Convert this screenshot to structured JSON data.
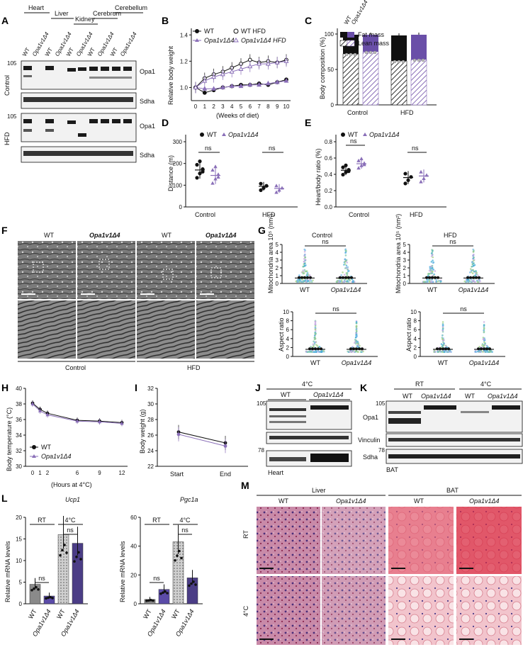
{
  "colors": {
    "wt": "#111111",
    "ko": "#8a6fb8",
    "ko_dark": "#4b3d86",
    "grey": "#8a8a8a"
  },
  "panels": {
    "A": {
      "label": "A",
      "tissues": [
        "Heart",
        "Liver",
        "Kidney",
        "Cerebrum",
        "Cerebellum"
      ],
      "genotypes": [
        "WT",
        "Opa1v1Δ4"
      ],
      "conditions": [
        "Control",
        "HFD"
      ],
      "mw": "105",
      "bands": [
        "Opa1",
        "Sdha"
      ]
    },
    "B": {
      "label": "B",
      "ylabel": "Relative body weight",
      "xlabel": "(Weeks of diet)",
      "legend": [
        "WT",
        "Opa1v1Δ4",
        "WT HFD",
        "Opa1v1Δ4 HFD"
      ],
      "yticks": [
        "1.0",
        "1.2",
        "1.4"
      ],
      "xticks": [
        "0",
        "1",
        "2",
        "3",
        "4",
        "5",
        "6",
        "7",
        "8",
        "9",
        "10"
      ]
    },
    "C": {
      "label": "C",
      "ylabel": "Body composition (%)",
      "legend_top": [
        "WT",
        "Opa1v1Δ4"
      ],
      "legend": [
        "Fat mass",
        "Lean mass"
      ],
      "yticks": [
        "0",
        "50",
        "100"
      ],
      "groups": [
        "Control",
        "HFD"
      ]
    },
    "D": {
      "label": "D",
      "ylabel": "Distance (m)",
      "legend": [
        "WT",
        "Opa1v1Δ4"
      ],
      "yticks": [
        "0",
        "100",
        "200",
        "300"
      ],
      "groups": [
        "Control",
        "HFD"
      ],
      "ns": "ns"
    },
    "E": {
      "label": "E",
      "ylabel": "Heart/body ratio (%)",
      "legend": [
        "WT",
        "Opa1v1Δ4"
      ],
      "yticks": [
        "0.0",
        "0.2",
        "0.4",
        "0.6",
        "0.8"
      ],
      "groups": [
        "Control",
        "HFD"
      ],
      "ns": "ns"
    },
    "F": {
      "label": "F",
      "cols": [
        "WT",
        "Opa1v1Δ4",
        "WT",
        "Opa1v1Δ4"
      ],
      "groups": [
        "Control",
        "HFD"
      ]
    },
    "G": {
      "label": "G",
      "titles": [
        "Control",
        "HFD"
      ],
      "ylabel_area": "Mitochondria area 10⁵ (nm²)",
      "ylabel_aspect": "Aspect ratio",
      "yticks_area": [
        "0",
        "1",
        "2",
        "3",
        "4",
        "5"
      ],
      "yticks_aspect": [
        "0",
        "2",
        "4",
        "6",
        "8",
        "10"
      ],
      "xlabels": [
        "WT",
        "Opa1v1Δ4"
      ],
      "ns": "ns"
    },
    "H": {
      "label": "H",
      "ylabel": "Body temperature (°C)",
      "xlabel": "(Hours at 4°C)",
      "legend": [
        "WT",
        "Opa1v1Δ4"
      ],
      "yticks": [
        "30",
        "32",
        "34",
        "36",
        "38",
        "40"
      ],
      "xticks": [
        "0",
        "1",
        "2",
        "6",
        "9",
        "12"
      ]
    },
    "I": {
      "label": "I",
      "ylabel": "Body weight (g)",
      "yticks": [
        "22",
        "24",
        "26",
        "28",
        "30",
        "32"
      ],
      "xticks": [
        "Start",
        "End"
      ]
    },
    "J": {
      "label": "J",
      "header": "4°C",
      "genotypes": [
        "WT",
        "Opa1v1Δ4"
      ],
      "mw": [
        "105",
        "78"
      ],
      "tissue": "Heart"
    },
    "K": {
      "label": "K",
      "headers": [
        "RT",
        "4°C"
      ],
      "genotypes": [
        "WT",
        "Opa1v1Δ4",
        "WT",
        "Opa1v1Δ4"
      ],
      "mw": [
        "105",
        "78"
      ],
      "bands": [
        "Opa1",
        "Vinculin",
        "Sdha"
      ],
      "tissue": "BAT"
    },
    "L": {
      "label": "L",
      "genes": [
        "Ucp1",
        "Pgc1a"
      ],
      "ylabel": "Relative mRNA levels",
      "conditions": [
        "RT",
        "4°C"
      ],
      "xlabels": [
        "WT",
        "Opa1v1Δ4",
        "WT",
        "Opa1v1Δ4"
      ],
      "ns": "ns",
      "yticks_ucp1": [
        "0",
        "5",
        "10",
        "15",
        "20"
      ],
      "yticks_pgc1a": [
        "0",
        "20",
        "40",
        "60"
      ]
    },
    "M": {
      "label": "M",
      "tissues": [
        "Liver",
        "BAT"
      ],
      "genotypes": [
        "WT",
        "Opa1v1Δ4",
        "WT",
        "Opa1v1Δ4"
      ],
      "rows": [
        "RT",
        "4°C"
      ]
    }
  },
  "chart_data": [
    {
      "type": "line",
      "panel": "B",
      "x": [
        0,
        1,
        2,
        3,
        4,
        5,
        6,
        7,
        8,
        9,
        10
      ],
      "series": [
        {
          "name": "WT",
          "values": [
            1.0,
            0.96,
            0.98,
            1.0,
            1.01,
            1.02,
            1.02,
            1.03,
            1.02,
            1.04,
            1.06
          ]
        },
        {
          "name": "Opa1v1Δ4",
          "values": [
            1.0,
            0.99,
            0.99,
            1.0,
            1.01,
            1.01,
            1.02,
            1.02,
            1.03,
            1.04,
            1.05
          ]
        },
        {
          "name": "WT HFD",
          "values": [
            1.0,
            1.07,
            1.1,
            1.12,
            1.15,
            1.18,
            1.21,
            1.19,
            1.2,
            1.19,
            1.21
          ]
        },
        {
          "name": "Opa1v1Δ4 HFD",
          "values": [
            1.0,
            1.05,
            1.08,
            1.1,
            1.12,
            1.14,
            1.16,
            1.18,
            1.18,
            1.19,
            1.2
          ]
        }
      ],
      "ylim": [
        0.9,
        1.45
      ]
    },
    {
      "type": "bar",
      "panel": "C",
      "categories": [
        "Control WT",
        "Control Opa1v1Δ4",
        "HFD WT",
        "HFD Opa1v1Δ4"
      ],
      "series": [
        {
          "name": "Lean mass",
          "values": [
            72,
            75,
            62,
            64
          ]
        },
        {
          "name": "Fat mass",
          "values": [
            27,
            24,
            36,
            35
          ]
        }
      ],
      "ylim": [
        0,
        100
      ]
    },
    {
      "type": "scatter",
      "panel": "D",
      "categories": [
        "Control",
        "HFD"
      ],
      "series": [
        {
          "name": "WT",
          "means": [
            170,
            95
          ]
        },
        {
          "name": "Opa1v1Δ4",
          "means": [
            145,
            85
          ]
        }
      ],
      "ylim": [
        0,
        300
      ]
    },
    {
      "type": "scatter",
      "panel": "E",
      "categories": [
        "Control",
        "HFD"
      ],
      "series": [
        {
          "name": "WT",
          "means": [
            0.45,
            0.36
          ]
        },
        {
          "name": "Opa1v1Δ4",
          "means": [
            0.53,
            0.38
          ]
        }
      ],
      "ylim": [
        0,
        0.8
      ]
    },
    {
      "type": "line",
      "panel": "H",
      "x": [
        0,
        1,
        2,
        6,
        9,
        12
      ],
      "series": [
        {
          "name": "WT",
          "values": [
            38.1,
            37.3,
            36.8,
            35.9,
            35.8,
            35.6
          ]
        },
        {
          "name": "Opa1v1Δ4",
          "values": [
            38.0,
            37.1,
            36.6,
            35.8,
            35.7,
            35.5
          ]
        }
      ],
      "ylim": [
        30,
        40
      ]
    },
    {
      "type": "line",
      "panel": "I",
      "x": [
        "Start",
        "End"
      ],
      "series": [
        {
          "name": "WT",
          "values": [
            26.4,
            25.0
          ]
        },
        {
          "name": "Opa1v1Δ4",
          "values": [
            26.1,
            24.6
          ]
        }
      ],
      "ylim": [
        22,
        32
      ]
    },
    {
      "type": "bar",
      "panel": "L-Ucp1",
      "categories": [
        "RT WT",
        "RT Opa1v1Δ4",
        "4°C WT",
        "4°C Opa1v1Δ4"
      ],
      "values": [
        4.5,
        1.8,
        16,
        14
      ],
      "ylim": [
        0,
        20
      ]
    },
    {
      "type": "bar",
      "panel": "L-Pgc1a",
      "categories": [
        "RT WT",
        "RT Opa1v1Δ4",
        "4°C WT",
        "4°C Opa1v1Δ4"
      ],
      "values": [
        3,
        10,
        43,
        18
      ],
      "ylim": [
        0,
        60
      ]
    }
  ]
}
